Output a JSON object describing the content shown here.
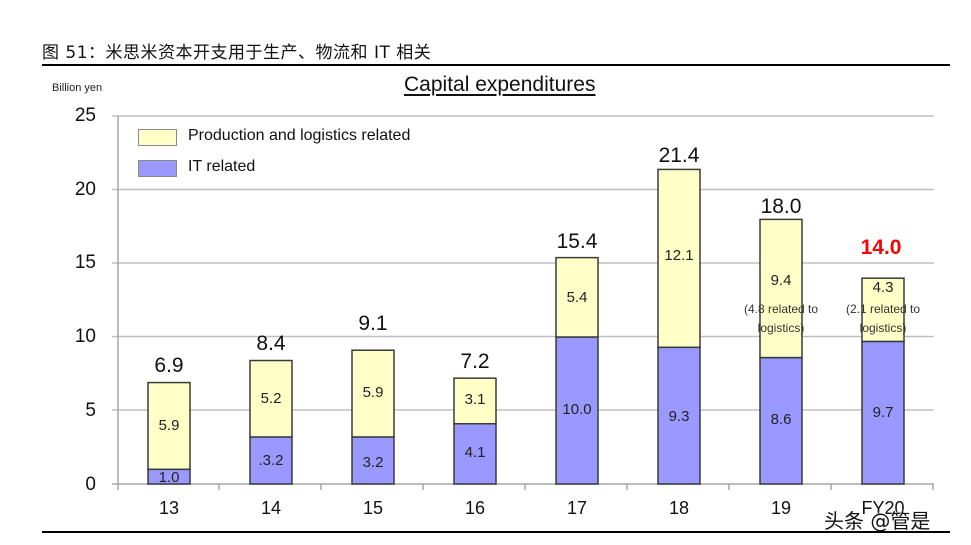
{
  "caption": "图 51：米思米资本开支用于生产、物流和 IT 相关",
  "watermark": "头条 @管是",
  "colors": {
    "production_logistics": "#FFFFC8",
    "it": "#9999FF",
    "highlight_total": "#FF0000",
    "grid": "#BFBFBF"
  },
  "chart_data": {
    "type": "bar",
    "stacked": true,
    "title": "Capital expenditures",
    "ylabel": "Billion yen",
    "xlabel": "",
    "ylim": [
      0,
      25
    ],
    "yticks": [
      0,
      5,
      10,
      15,
      20,
      25
    ],
    "grid": true,
    "legend_position": "upper-left inside",
    "categories": [
      "13",
      "14",
      "15",
      "16",
      "17",
      "18",
      "19",
      "FY20"
    ],
    "series": [
      {
        "name": "IT related",
        "color": "#9999FF",
        "values": [
          1.0,
          3.2,
          3.2,
          4.1,
          10.0,
          9.3,
          8.6,
          9.7
        ]
      },
      {
        "name": "Production and logistics related",
        "color": "#FFFFC8",
        "values": [
          5.9,
          5.2,
          5.9,
          3.1,
          5.4,
          12.1,
          9.4,
          4.3
        ]
      }
    ],
    "totals": [
      6.9,
      8.4,
      9.1,
      7.2,
      15.4,
      21.4,
      18.0,
      14.0
    ],
    "segment_labels": {
      "it": [
        "1.0",
        ".3.2",
        "3.2",
        "4.1",
        "10.0",
        "9.3",
        "8.6",
        "9.7"
      ],
      "production": [
        "5.9",
        "5.2",
        "5.9",
        "3.1",
        "5.4",
        "12.1",
        "9.4",
        "4.3"
      ]
    },
    "total_labels": [
      "6.9",
      "8.4",
      "9.1",
      "7.2",
      "15.4",
      "21.4",
      "18.0",
      "14.0"
    ],
    "annotations": [
      {
        "category": "19",
        "text_line1": "(4.8 related to",
        "text_line2": "logistics)"
      },
      {
        "category": "FY20",
        "text_line1": "(2.1 related to",
        "text_line2": "logistics)"
      }
    ],
    "highlighted_total": "FY20"
  }
}
